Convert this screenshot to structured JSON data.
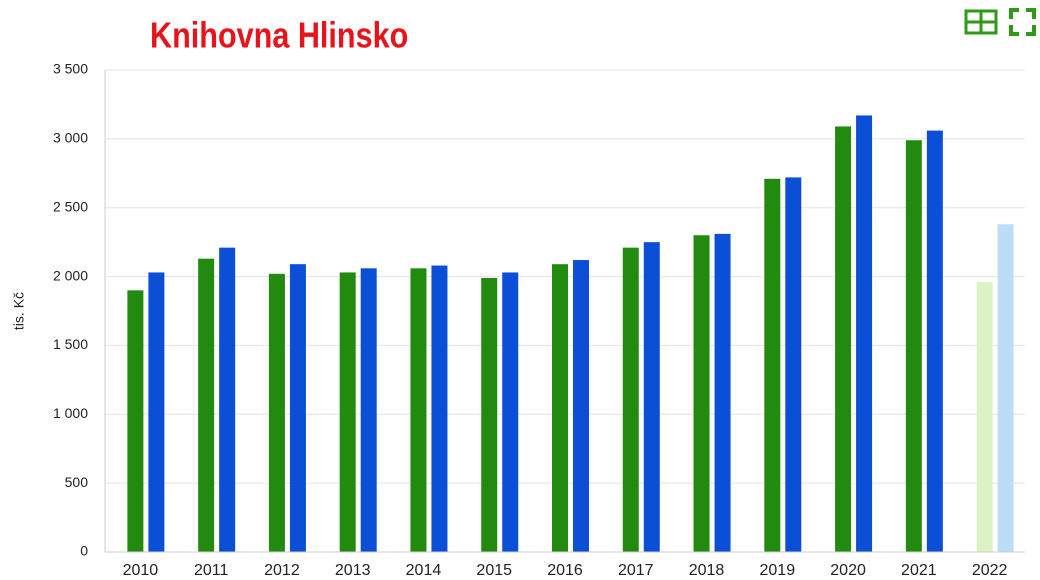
{
  "chart_data": {
    "type": "bar",
    "title": "Knihovna Hlinsko",
    "y_label": "tis. Kč",
    "categories": [
      "2010",
      "2011",
      "2012",
      "2013",
      "2014",
      "2015",
      "2016",
      "2017",
      "2018",
      "2019",
      "2020",
      "2021",
      "2022"
    ],
    "series": [
      {
        "color": "#228b0f",
        "colors": [
          "#228b0f",
          "#228b0f",
          "#228b0f",
          "#228b0f",
          "#228b0f",
          "#228b0f",
          "#228b0f",
          "#228b0f",
          "#228b0f",
          "#228b0f",
          "#228b0f",
          "#228b0f",
          "#dcf1c4"
        ],
        "values": [
          1900,
          2130,
          2020,
          2030,
          2060,
          1990,
          2090,
          2210,
          2300,
          2710,
          3090,
          2990,
          1960
        ]
      },
      {
        "color": "#0a4fd6",
        "colors": [
          "#0a4fd6",
          "#0a4fd6",
          "#0a4fd6",
          "#0a4fd6",
          "#0a4fd6",
          "#0a4fd6",
          "#0a4fd6",
          "#0a4fd6",
          "#0a4fd6",
          "#0a4fd6",
          "#0a4fd6",
          "#0a4fd6",
          "#bcdcf8"
        ],
        "values": [
          2030,
          2210,
          2090,
          2060,
          2080,
          2030,
          2120,
          2250,
          2310,
          2720,
          3170,
          3060,
          2380
        ]
      }
    ],
    "ylim": [
      0,
      3500
    ],
    "yticks": [
      0,
      500,
      {
        "value": 1000,
        "label": "1 000"
      },
      {
        "value": 1500,
        "label": "1 500"
      },
      {
        "value": 2000,
        "label": "2 000"
      },
      {
        "value": 2500,
        "label": "2 500"
      },
      {
        "value": 3000,
        "label": "3 000"
      },
      {
        "value": 3500,
        "label": "3 500"
      }
    ],
    "grid": true
  }
}
